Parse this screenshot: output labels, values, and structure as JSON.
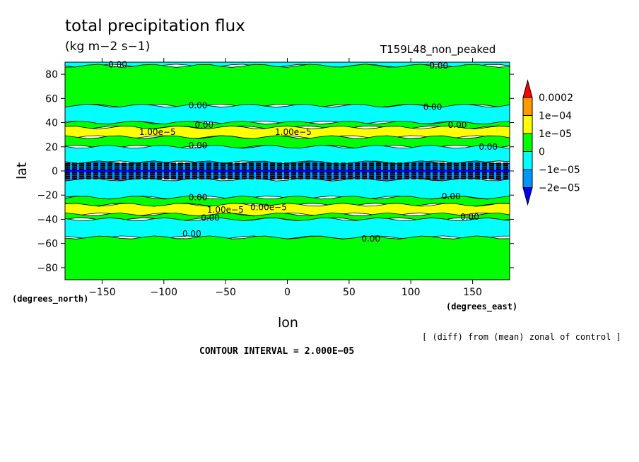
{
  "colors": {
    "neg2": "#0096ff",
    "neg1": "#00ffff",
    "zero": "#00ff00",
    "pos1": "#ffff00",
    "pos2": "#ff9900",
    "pos3": "#ff0000",
    "dark": "#0000ff"
  },
  "chart_data": {
    "type": "heatmap",
    "title": "total precipitation flux",
    "units": "(kg m−2 s−1)",
    "run_name": "T159L48_non_peaked",
    "xlabel": "lon",
    "ylabel": "lat",
    "x_units": "(degrees_east)",
    "y_units": "(degrees_north)",
    "xlim": [
      -180,
      180
    ],
    "ylim": [
      -90,
      90
    ],
    "x_ticks": [
      -150,
      -100,
      -50,
      0,
      50,
      100,
      150
    ],
    "y_ticks": [
      -80,
      -60,
      -40,
      -20,
      0,
      20,
      40,
      60,
      80
    ],
    "colorbar": {
      "levels": [
        -2e-05,
        -1e-05,
        0,
        1e-05,
        0.0001,
        0.0002
      ],
      "labels": [
        "0.0002",
        "1e−04",
        "1e−05",
        "0",
        "−1e−05",
        "−2e−05"
      ]
    },
    "zonal_bands": [
      {
        "lat_from": 90,
        "lat_to": 87,
        "level": -1
      },
      {
        "lat_from": 87,
        "lat_to": 54,
        "level": 0
      },
      {
        "lat_from": 54,
        "lat_to": 40,
        "level": -1
      },
      {
        "lat_from": 40,
        "lat_to": 36,
        "level": 0
      },
      {
        "lat_from": 36,
        "lat_to": 28,
        "level": 1
      },
      {
        "lat_from": 28,
        "lat_to": 20,
        "level": 0
      },
      {
        "lat_from": 20,
        "lat_to": 7,
        "level": -1
      },
      {
        "lat_from": 7,
        "lat_to": -7,
        "level": -2
      },
      {
        "lat_from": -7,
        "lat_to": -22,
        "level": -1
      },
      {
        "lat_from": -22,
        "lat_to": -28,
        "level": 0
      },
      {
        "lat_from": -28,
        "lat_to": -36,
        "level": 1
      },
      {
        "lat_from": -36,
        "lat_to": -40,
        "level": 0
      },
      {
        "lat_from": -40,
        "lat_to": -55,
        "level": -1
      },
      {
        "lat_from": -55,
        "lat_to": -90,
        "level": 0
      }
    ],
    "contour_labels": [
      {
        "lon": -145,
        "lat": 88,
        "text": "0.00"
      },
      {
        "lon": 115,
        "lat": 87,
        "text": "0.00"
      },
      {
        "lon": -80,
        "lat": 54,
        "text": "0.00"
      },
      {
        "lon": 110,
        "lat": 53,
        "text": "0.00"
      },
      {
        "lon": -75,
        "lat": 38,
        "text": "0.00"
      },
      {
        "lon": 130,
        "lat": 38,
        "text": "0.00"
      },
      {
        "lon": -120,
        "lat": 32,
        "text": "1.00e−5"
      },
      {
        "lon": -10,
        "lat": 32,
        "text": "1.00e−5"
      },
      {
        "lon": -80,
        "lat": 21,
        "text": "0.00"
      },
      {
        "lon": 155,
        "lat": 20,
        "text": "0.00"
      },
      {
        "lon": -80,
        "lat": -22,
        "text": "0.00"
      },
      {
        "lon": 125,
        "lat": -21,
        "text": "0.00"
      },
      {
        "lon": -65,
        "lat": -32,
        "text": "1.00e−5"
      },
      {
        "lon": -30,
        "lat": -30,
        "text": "0.00e−5"
      },
      {
        "lon": -70,
        "lat": -39,
        "text": "0.00"
      },
      {
        "lon": 140,
        "lat": -38,
        "text": "0.00"
      },
      {
        "lon": -85,
        "lat": -52,
        "text": "0.00"
      },
      {
        "lon": 60,
        "lat": -56,
        "text": "0.00"
      }
    ]
  },
  "footer": {
    "note": "[ (diff) from (mean) zonal of control ]",
    "interval": "CONTOUR INTERVAL = 2.000E−05"
  }
}
